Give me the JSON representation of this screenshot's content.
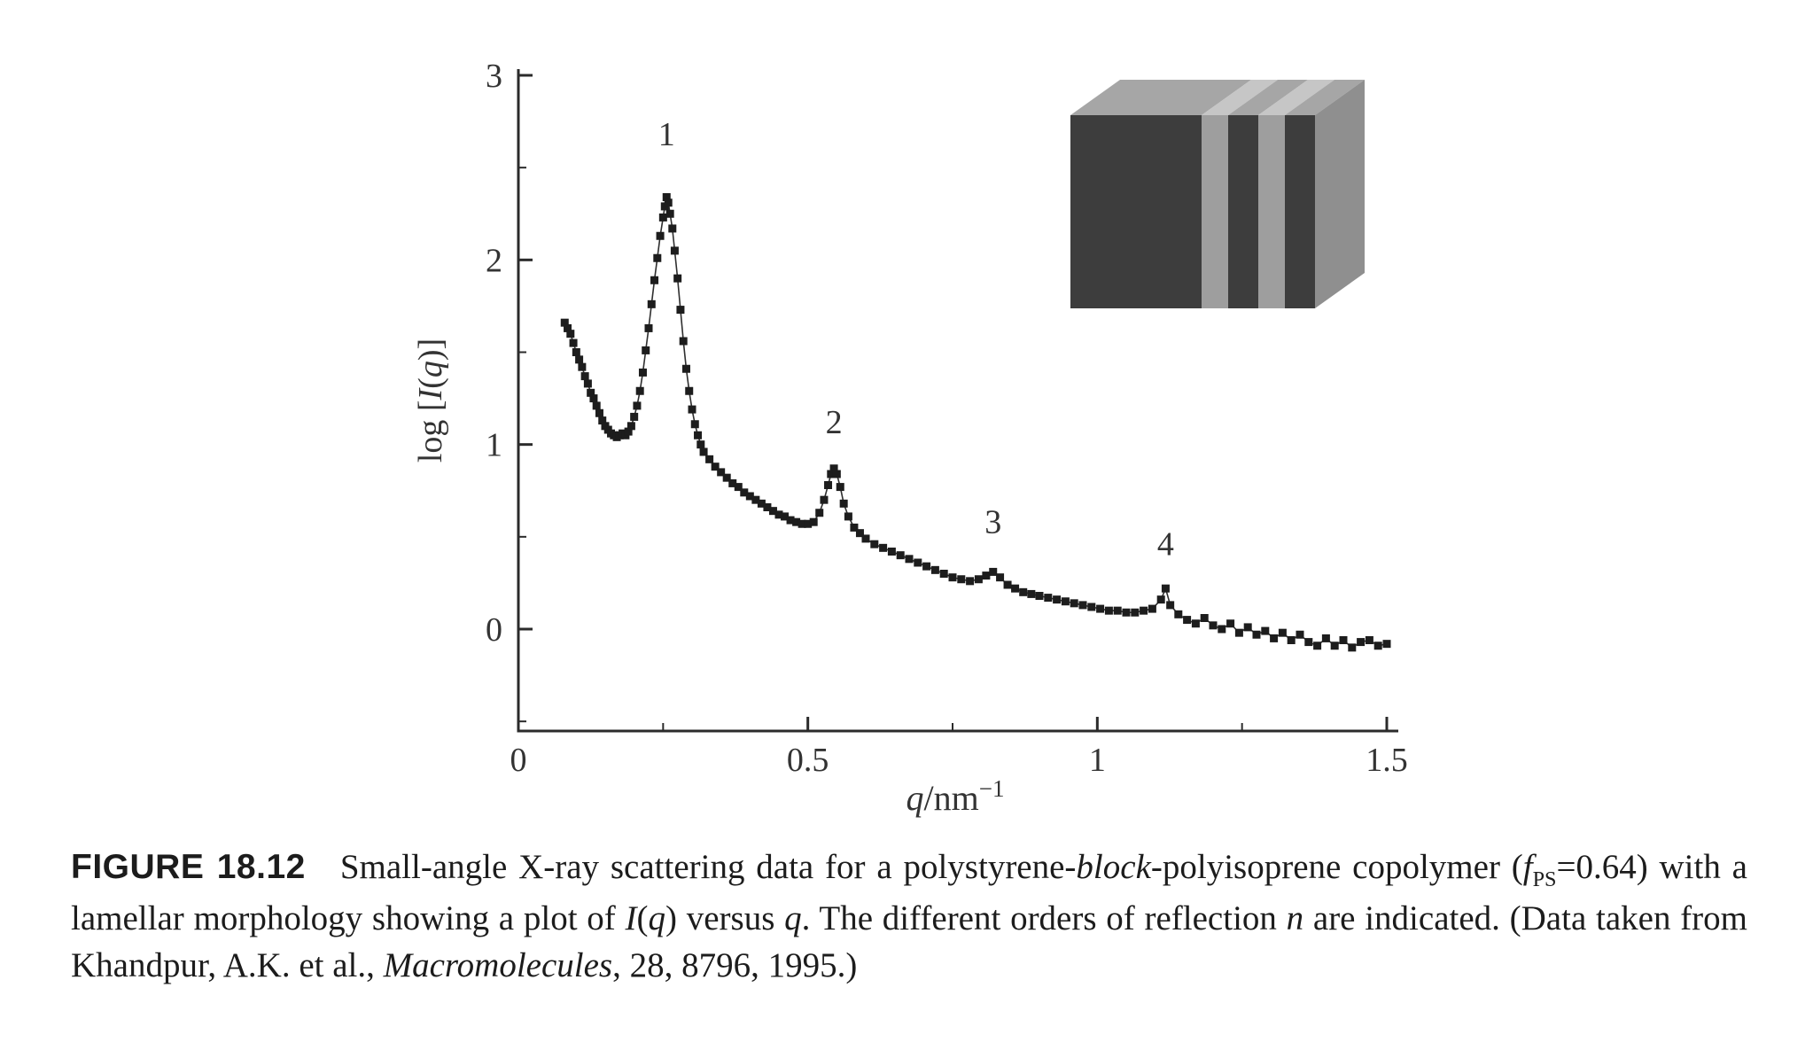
{
  "colors": {
    "background": "#ffffff",
    "axis_ink": "#2b2b2b",
    "tick_label_ink": "#333333",
    "caption_ink": "#1c1c1c"
  },
  "figure": {
    "caption_segments": [
      {
        "t": "FIGURE 18.12",
        "b": true
      },
      {
        "t": "  Small-angle X-ray scattering data for a polystyrene-"
      },
      {
        "t": "block",
        "i": true
      },
      {
        "t": "-polyisoprene copolymer ("
      },
      {
        "t": "f",
        "i": true
      },
      {
        "t": "PS",
        "sub": true
      },
      {
        "t": "=0.64) with a lamellar morphology showing a plot of "
      },
      {
        "t": "I",
        "i": true
      },
      {
        "t": "("
      },
      {
        "t": "q",
        "i": true
      },
      {
        "t": ") versus "
      },
      {
        "t": "q",
        "i": true
      },
      {
        "t": ". The different orders of reflection "
      },
      {
        "t": "n",
        "i": true
      },
      {
        "t": " are indicated. (Data taken from Khandpur, A.K. et al., "
      },
      {
        "t": "Macromolecules",
        "i": true
      },
      {
        "t": ", 28, 8796, 1995.)"
      }
    ]
  },
  "chart_data": {
    "type": "scatter",
    "title": "",
    "xlabel_plain": "q/nm−1",
    "ylabel_plain": "log [I(q)]",
    "xlabel_segments": [
      {
        "t": "q",
        "i": true
      },
      {
        "t": "/nm"
      },
      {
        "t": "−1",
        "sup": true
      }
    ],
    "ylabel_segments": [
      {
        "t": "log ["
      },
      {
        "t": "I",
        "i": true
      },
      {
        "t": "("
      },
      {
        "t": "q",
        "i": true
      },
      {
        "t": ")]"
      }
    ],
    "xlim": [
      0,
      1.5
    ],
    "ylim": [
      -0.55,
      3
    ],
    "grid": false,
    "x_ticks": {
      "major": [
        0,
        0.5,
        1,
        1.5
      ],
      "labels": [
        "0",
        "0.5",
        "1",
        "1.5"
      ],
      "minor": [
        0.25,
        0.75,
        1.25
      ]
    },
    "y_ticks": {
      "major": [
        0,
        1,
        2,
        3
      ],
      "labels": [
        "0",
        "1",
        "2",
        "3"
      ],
      "minor": [
        -0.5,
        0.5,
        1.5,
        2.5
      ]
    },
    "peak_annotations": [
      {
        "label": "1",
        "q": 0.256,
        "label_y": 2.62
      },
      {
        "label": "2",
        "q": 0.545,
        "label_y": 1.06
      },
      {
        "label": "3",
        "q": 0.82,
        "label_y": 0.52
      },
      {
        "label": "4",
        "q": 1.118,
        "label_y": 0.4
      }
    ],
    "series": [
      {
        "name": "SAXS intensity",
        "marker": "filled-square",
        "color": "#1d1d1d",
        "line_color": "#2f2f2f",
        "points": [
          [
            0.08,
            1.66
          ],
          [
            0.085,
            1.63
          ],
          [
            0.09,
            1.6
          ],
          [
            0.095,
            1.55
          ],
          [
            0.1,
            1.5
          ],
          [
            0.105,
            1.46
          ],
          [
            0.11,
            1.42
          ],
          [
            0.115,
            1.37
          ],
          [
            0.12,
            1.33
          ],
          [
            0.125,
            1.28
          ],
          [
            0.13,
            1.25
          ],
          [
            0.135,
            1.21
          ],
          [
            0.14,
            1.17
          ],
          [
            0.145,
            1.13
          ],
          [
            0.15,
            1.1
          ],
          [
            0.155,
            1.08
          ],
          [
            0.16,
            1.06
          ],
          [
            0.165,
            1.05
          ],
          [
            0.17,
            1.04
          ],
          [
            0.175,
            1.05
          ],
          [
            0.18,
            1.06
          ],
          [
            0.185,
            1.05
          ],
          [
            0.19,
            1.07
          ],
          [
            0.195,
            1.1
          ],
          [
            0.2,
            1.15
          ],
          [
            0.205,
            1.21
          ],
          [
            0.21,
            1.29
          ],
          [
            0.215,
            1.39
          ],
          [
            0.22,
            1.51
          ],
          [
            0.225,
            1.63
          ],
          [
            0.23,
            1.76
          ],
          [
            0.235,
            1.89
          ],
          [
            0.24,
            2.01
          ],
          [
            0.245,
            2.13
          ],
          [
            0.25,
            2.23
          ],
          [
            0.253,
            2.29
          ],
          [
            0.256,
            2.34
          ],
          [
            0.259,
            2.31
          ],
          [
            0.262,
            2.25
          ],
          [
            0.266,
            2.17
          ],
          [
            0.27,
            2.05
          ],
          [
            0.275,
            1.9
          ],
          [
            0.28,
            1.73
          ],
          [
            0.285,
            1.56
          ],
          [
            0.29,
            1.41
          ],
          [
            0.295,
            1.29
          ],
          [
            0.3,
            1.19
          ],
          [
            0.305,
            1.11
          ],
          [
            0.31,
            1.05
          ],
          [
            0.315,
            1.0
          ],
          [
            0.32,
            0.96
          ],
          [
            0.33,
            0.92
          ],
          [
            0.34,
            0.88
          ],
          [
            0.35,
            0.85
          ],
          [
            0.36,
            0.82
          ],
          [
            0.37,
            0.79
          ],
          [
            0.38,
            0.77
          ],
          [
            0.39,
            0.74
          ],
          [
            0.4,
            0.72
          ],
          [
            0.41,
            0.7
          ],
          [
            0.42,
            0.68
          ],
          [
            0.43,
            0.66
          ],
          [
            0.44,
            0.64
          ],
          [
            0.45,
            0.62
          ],
          [
            0.46,
            0.61
          ],
          [
            0.47,
            0.59
          ],
          [
            0.48,
            0.58
          ],
          [
            0.49,
            0.57
          ],
          [
            0.5,
            0.57
          ],
          [
            0.51,
            0.58
          ],
          [
            0.52,
            0.63
          ],
          [
            0.528,
            0.7
          ],
          [
            0.535,
            0.78
          ],
          [
            0.54,
            0.84
          ],
          [
            0.545,
            0.87
          ],
          [
            0.55,
            0.84
          ],
          [
            0.556,
            0.77
          ],
          [
            0.562,
            0.68
          ],
          [
            0.57,
            0.61
          ],
          [
            0.58,
            0.55
          ],
          [
            0.59,
            0.52
          ],
          [
            0.6,
            0.49
          ],
          [
            0.615,
            0.46
          ],
          [
            0.63,
            0.44
          ],
          [
            0.645,
            0.42
          ],
          [
            0.66,
            0.4
          ],
          [
            0.675,
            0.38
          ],
          [
            0.69,
            0.36
          ],
          [
            0.705,
            0.34
          ],
          [
            0.72,
            0.32
          ],
          [
            0.735,
            0.3
          ],
          [
            0.75,
            0.28
          ],
          [
            0.765,
            0.27
          ],
          [
            0.78,
            0.26
          ],
          [
            0.795,
            0.27
          ],
          [
            0.808,
            0.29
          ],
          [
            0.82,
            0.31
          ],
          [
            0.832,
            0.28
          ],
          [
            0.845,
            0.24
          ],
          [
            0.858,
            0.22
          ],
          [
            0.872,
            0.2
          ],
          [
            0.886,
            0.19
          ],
          [
            0.9,
            0.18
          ],
          [
            0.915,
            0.17
          ],
          [
            0.93,
            0.16
          ],
          [
            0.945,
            0.15
          ],
          [
            0.96,
            0.14
          ],
          [
            0.975,
            0.13
          ],
          [
            0.99,
            0.12
          ],
          [
            1.005,
            0.11
          ],
          [
            1.02,
            0.1
          ],
          [
            1.035,
            0.1
          ],
          [
            1.05,
            0.09
          ],
          [
            1.065,
            0.09
          ],
          [
            1.08,
            0.1
          ],
          [
            1.095,
            0.11
          ],
          [
            1.11,
            0.16
          ],
          [
            1.118,
            0.22
          ],
          [
            1.126,
            0.13
          ],
          [
            1.14,
            0.08
          ],
          [
            1.155,
            0.05
          ],
          [
            1.17,
            0.03
          ],
          [
            1.185,
            0.06
          ],
          [
            1.2,
            0.02
          ],
          [
            1.215,
            0.0
          ],
          [
            1.23,
            0.03
          ],
          [
            1.245,
            -0.02
          ],
          [
            1.26,
            0.01
          ],
          [
            1.275,
            -0.03
          ],
          [
            1.29,
            -0.01
          ],
          [
            1.305,
            -0.05
          ],
          [
            1.32,
            -0.02
          ],
          [
            1.335,
            -0.06
          ],
          [
            1.35,
            -0.03
          ],
          [
            1.365,
            -0.07
          ],
          [
            1.38,
            -0.09
          ],
          [
            1.395,
            -0.05
          ],
          [
            1.41,
            -0.09
          ],
          [
            1.425,
            -0.06
          ],
          [
            1.44,
            -0.1
          ],
          [
            1.455,
            -0.07
          ],
          [
            1.47,
            -0.06
          ],
          [
            1.485,
            -0.09
          ],
          [
            1.5,
            -0.08
          ]
        ]
      }
    ],
    "inset": {
      "name": "lamellar-morphology-illustration",
      "dark_color": "#3d3d3d",
      "light_color": "#9e9e9e",
      "dark_top_color": "#a6a6a6",
      "light_top_color": "#c6c6c6",
      "side_color": "#8f8f8f"
    }
  }
}
